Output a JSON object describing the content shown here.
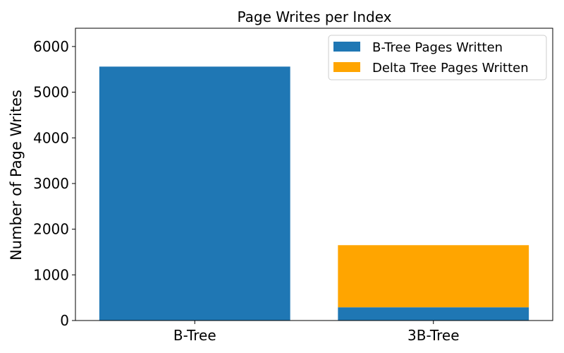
{
  "chart_data": {
    "type": "bar",
    "stacked": true,
    "title": "Page Writes per Index",
    "xlabel": "",
    "ylabel": "Number of Page Writes",
    "categories": [
      "B-Tree",
      "3B-Tree"
    ],
    "series": [
      {
        "name": "B-Tree Pages Written",
        "color": "#1f77b4",
        "values": [
          5560,
          290
        ]
      },
      {
        "name": "Delta Tree Pages Written",
        "color": "#ffa500",
        "values": [
          0,
          1360
        ]
      }
    ],
    "ylim": [
      0,
      6400
    ],
    "yticks": [
      0,
      1000,
      2000,
      3000,
      4000,
      5000,
      6000
    ],
    "grid": false,
    "legend_position": "top-right"
  }
}
